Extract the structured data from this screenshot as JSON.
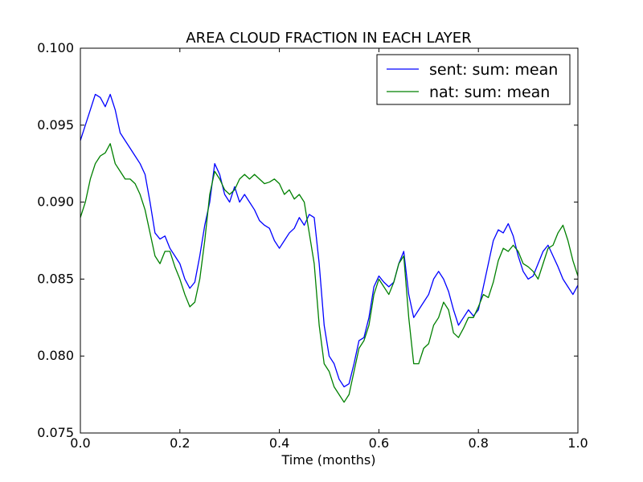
{
  "chart_data": {
    "type": "line",
    "title": "AREA CLOUD FRACTION IN EACH LAYER",
    "xlabel": "Time (months)",
    "ylabel": "",
    "xlim": [
      0.0,
      1.0
    ],
    "ylim": [
      0.075,
      0.1
    ],
    "xticks": [
      "0.0",
      "0.2",
      "0.4",
      "0.6",
      "0.8",
      "1.0"
    ],
    "yticks": [
      "0.075",
      "0.080",
      "0.085",
      "0.090",
      "0.095",
      "0.100"
    ],
    "grid": false,
    "legend_position": "top-right",
    "x": [
      0.0,
      0.01,
      0.02,
      0.03,
      0.04,
      0.05,
      0.06,
      0.07,
      0.08,
      0.09,
      0.1,
      0.11,
      0.12,
      0.13,
      0.14,
      0.15,
      0.16,
      0.17,
      0.18,
      0.19,
      0.2,
      0.21,
      0.22,
      0.23,
      0.24,
      0.25,
      0.26,
      0.27,
      0.28,
      0.29,
      0.3,
      0.31,
      0.32,
      0.33,
      0.34,
      0.35,
      0.36,
      0.37,
      0.38,
      0.39,
      0.4,
      0.41,
      0.42,
      0.43,
      0.44,
      0.45,
      0.46,
      0.47,
      0.48,
      0.49,
      0.5,
      0.51,
      0.52,
      0.53,
      0.54,
      0.55,
      0.56,
      0.57,
      0.58,
      0.59,
      0.6,
      0.61,
      0.62,
      0.63,
      0.64,
      0.65,
      0.66,
      0.67,
      0.68,
      0.69,
      0.7,
      0.71,
      0.72,
      0.73,
      0.74,
      0.75,
      0.76,
      0.77,
      0.78,
      0.79,
      0.8,
      0.81,
      0.82,
      0.83,
      0.84,
      0.85,
      0.86,
      0.87,
      0.88,
      0.89,
      0.9,
      0.91,
      0.92,
      0.93,
      0.94,
      0.95,
      0.96,
      0.97,
      0.98,
      0.99,
      1.0
    ],
    "series": [
      {
        "name": "sent: sum: mean",
        "color": "#0000ff",
        "values": [
          0.094,
          0.095,
          0.096,
          0.097,
          0.0968,
          0.0962,
          0.097,
          0.096,
          0.0945,
          0.094,
          0.0935,
          0.093,
          0.0925,
          0.0918,
          0.09,
          0.088,
          0.0876,
          0.0878,
          0.087,
          0.0865,
          0.086,
          0.085,
          0.0844,
          0.0848,
          0.0865,
          0.0885,
          0.09,
          0.0925,
          0.0918,
          0.0905,
          0.09,
          0.091,
          0.09,
          0.0905,
          0.09,
          0.0895,
          0.0888,
          0.0885,
          0.0883,
          0.0875,
          0.087,
          0.0875,
          0.088,
          0.0883,
          0.089,
          0.0885,
          0.0892,
          0.089,
          0.086,
          0.082,
          0.08,
          0.0795,
          0.0785,
          0.078,
          0.0782,
          0.0795,
          0.081,
          0.0812,
          0.0825,
          0.0845,
          0.0852,
          0.0848,
          0.0845,
          0.0848,
          0.086,
          0.0868,
          0.084,
          0.0825,
          0.083,
          0.0835,
          0.084,
          0.085,
          0.0855,
          0.085,
          0.0842,
          0.083,
          0.082,
          0.0825,
          0.083,
          0.0826,
          0.083,
          0.0845,
          0.086,
          0.0875,
          0.0882,
          0.088,
          0.0886,
          0.0878,
          0.0865,
          0.0855,
          0.085,
          0.0852,
          0.086,
          0.0868,
          0.0872,
          0.0865,
          0.0858,
          0.085,
          0.0845,
          0.084,
          0.0846
        ]
      },
      {
        "name": "nat: sum: mean",
        "color": "#008000",
        "values": [
          0.089,
          0.09,
          0.0915,
          0.0925,
          0.093,
          0.0932,
          0.0938,
          0.0925,
          0.092,
          0.0915,
          0.0915,
          0.0912,
          0.0905,
          0.0895,
          0.088,
          0.0865,
          0.086,
          0.0868,
          0.0868,
          0.0858,
          0.085,
          0.084,
          0.0832,
          0.0835,
          0.085,
          0.0875,
          0.0905,
          0.092,
          0.0915,
          0.0908,
          0.0905,
          0.0908,
          0.0915,
          0.0918,
          0.0915,
          0.0918,
          0.0915,
          0.0912,
          0.0913,
          0.0915,
          0.0912,
          0.0905,
          0.0908,
          0.0902,
          0.0905,
          0.09,
          0.088,
          0.086,
          0.082,
          0.0795,
          0.079,
          0.078,
          0.0775,
          0.077,
          0.0775,
          0.079,
          0.0805,
          0.081,
          0.082,
          0.084,
          0.085,
          0.0845,
          0.084,
          0.0848,
          0.086,
          0.0865,
          0.0825,
          0.0795,
          0.0795,
          0.0805,
          0.0808,
          0.082,
          0.0825,
          0.0835,
          0.083,
          0.0815,
          0.0812,
          0.0818,
          0.0825,
          0.0825,
          0.0832,
          0.084,
          0.0838,
          0.0848,
          0.0862,
          0.087,
          0.0868,
          0.0872,
          0.0868,
          0.086,
          0.0858,
          0.0855,
          0.085,
          0.086,
          0.087,
          0.0872,
          0.088,
          0.0885,
          0.0875,
          0.0862,
          0.0852
        ]
      }
    ]
  }
}
